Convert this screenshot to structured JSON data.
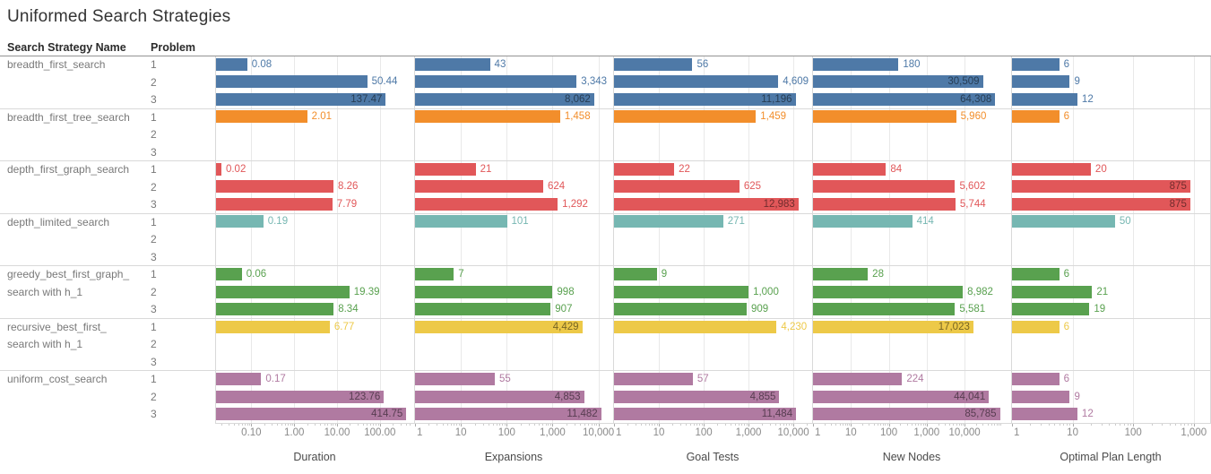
{
  "chart_data": {
    "type": "bar",
    "orientation": "horizontal",
    "scale": "log",
    "grid": true,
    "title": "Uniformed Search Strategies",
    "columns": {
      "strategy": "Search Strategy Name",
      "problem": "Problem"
    },
    "problems": [
      "1",
      "2",
      "3"
    ],
    "metrics": [
      {
        "label": "Duration",
        "min": 0.015,
        "max": 600,
        "ticks": [
          {
            "v": 0.1,
            "t": "0.10"
          },
          {
            "v": 1,
            "t": "1.00"
          },
          {
            "v": 10,
            "t": "10.00"
          },
          {
            "v": 100,
            "t": "100.00"
          }
        ]
      },
      {
        "label": "Expansions",
        "min": 1,
        "max": 20000,
        "ticks": [
          {
            "v": 1,
            "t": "1"
          },
          {
            "v": 10,
            "t": "10"
          },
          {
            "v": 100,
            "t": "100"
          },
          {
            "v": 1000,
            "t": "1,000"
          },
          {
            "v": 10000,
            "t": "10,000"
          }
        ]
      },
      {
        "label": "Goal Tests",
        "min": 1,
        "max": 25000,
        "ticks": [
          {
            "v": 1,
            "t": "1"
          },
          {
            "v": 10,
            "t": "10"
          },
          {
            "v": 100,
            "t": "100"
          },
          {
            "v": 1000,
            "t": "1,000"
          },
          {
            "v": 10000,
            "t": "10,000"
          }
        ]
      },
      {
        "label": "New Nodes",
        "min": 1,
        "max": 160000,
        "ticks": [
          {
            "v": 1,
            "t": "1"
          },
          {
            "v": 10,
            "t": "10"
          },
          {
            "v": 100,
            "t": "100"
          },
          {
            "v": 1000,
            "t": "1,000"
          },
          {
            "v": 10000,
            "t": "10,000"
          }
        ]
      },
      {
        "label": "Optimal Plan Length",
        "min": 1,
        "max": 1800,
        "ticks": [
          {
            "v": 1,
            "t": "1"
          },
          {
            "v": 10,
            "t": "10"
          },
          {
            "v": 100,
            "t": "100"
          },
          {
            "v": 1000,
            "t": "1,000"
          }
        ]
      }
    ],
    "strategies": [
      {
        "name_lines": [
          "breadth_first_search"
        ],
        "color": "#4e79a7",
        "rows": [
          {
            "problem": "1",
            "cells": [
              {
                "v": 0.08,
                "t": "0.08"
              },
              {
                "v": 43,
                "t": "43"
              },
              {
                "v": 56,
                "t": "56"
              },
              {
                "v": 180,
                "t": "180"
              },
              {
                "v": 6,
                "t": "6"
              }
            ]
          },
          {
            "problem": "2",
            "cells": [
              {
                "v": 50.44,
                "t": "50.44"
              },
              {
                "v": 3343,
                "t": "3,343"
              },
              {
                "v": 4609,
                "t": "4,609"
              },
              {
                "v": 30509,
                "t": "30,509",
                "in": true
              },
              {
                "v": 9,
                "t": "9"
              }
            ]
          },
          {
            "problem": "3",
            "cells": [
              {
                "v": 137.47,
                "t": "137.47",
                "in": true
              },
              {
                "v": 8062,
                "t": "8,062",
                "in": true
              },
              {
                "v": 11196,
                "t": "11,196",
                "in": true
              },
              {
                "v": 64308,
                "t": "64,308",
                "in": true
              },
              {
                "v": 12,
                "t": "12"
              }
            ]
          }
        ]
      },
      {
        "name_lines": [
          "breadth_first_tree_search"
        ],
        "color": "#f28e2b",
        "rows": [
          {
            "problem": "1",
            "cells": [
              {
                "v": 2.01,
                "t": "2.01"
              },
              {
                "v": 1458,
                "t": "1,458"
              },
              {
                "v": 1459,
                "t": "1,459"
              },
              {
                "v": 5960,
                "t": "5,960"
              },
              {
                "v": 6,
                "t": "6"
              }
            ]
          },
          {
            "problem": "2",
            "cells": null
          },
          {
            "problem": "3",
            "cells": null
          }
        ]
      },
      {
        "name_lines": [
          "depth_first_graph_search"
        ],
        "color": "#e15759",
        "rows": [
          {
            "problem": "1",
            "cells": [
              {
                "v": 0.02,
                "t": "0.02"
              },
              {
                "v": 21,
                "t": "21"
              },
              {
                "v": 22,
                "t": "22"
              },
              {
                "v": 84,
                "t": "84"
              },
              {
                "v": 20,
                "t": "20"
              }
            ]
          },
          {
            "problem": "2",
            "cells": [
              {
                "v": 8.26,
                "t": "8.26"
              },
              {
                "v": 624,
                "t": "624"
              },
              {
                "v": 625,
                "t": "625"
              },
              {
                "v": 5602,
                "t": "5,602"
              },
              {
                "v": 875,
                "t": "875",
                "in": true
              }
            ]
          },
          {
            "problem": "3",
            "cells": [
              {
                "v": 7.79,
                "t": "7.79"
              },
              {
                "v": 1292,
                "t": "1,292"
              },
              {
                "v": 12983,
                "t": "12,983",
                "in": true
              },
              {
                "v": 5744,
                "t": "5,744"
              },
              {
                "v": 875,
                "t": "875",
                "in": true
              }
            ]
          }
        ]
      },
      {
        "name_lines": [
          "depth_limited_search"
        ],
        "color": "#76b7b2",
        "rows": [
          {
            "problem": "1",
            "cells": [
              {
                "v": 0.19,
                "t": "0.19"
              },
              {
                "v": 101,
                "t": "101"
              },
              {
                "v": 271,
                "t": "271"
              },
              {
                "v": 414,
                "t": "414"
              },
              {
                "v": 50,
                "t": "50"
              }
            ]
          },
          {
            "problem": "2",
            "cells": null
          },
          {
            "problem": "3",
            "cells": null
          }
        ]
      },
      {
        "name_lines": [
          "greedy_best_first_graph_",
          "search with h_1"
        ],
        "color": "#59a14f",
        "rows": [
          {
            "problem": "1",
            "cells": [
              {
                "v": 0.06,
                "t": "0.06"
              },
              {
                "v": 7,
                "t": "7"
              },
              {
                "v": 9,
                "t": "9"
              },
              {
                "v": 28,
                "t": "28"
              },
              {
                "v": 6,
                "t": "6"
              }
            ]
          },
          {
            "problem": "2",
            "cells": [
              {
                "v": 19.39,
                "t": "19.39"
              },
              {
                "v": 998,
                "t": "998"
              },
              {
                "v": 1000,
                "t": "1,000"
              },
              {
                "v": 8982,
                "t": "8,982"
              },
              {
                "v": 21,
                "t": "21"
              }
            ]
          },
          {
            "problem": "3",
            "cells": [
              {
                "v": 8.34,
                "t": "8.34"
              },
              {
                "v": 907,
                "t": "907"
              },
              {
                "v": 909,
                "t": "909"
              },
              {
                "v": 5581,
                "t": "5,581"
              },
              {
                "v": 19,
                "t": "19"
              }
            ]
          }
        ]
      },
      {
        "name_lines": [
          "recursive_best_first_",
          "search with h_1"
        ],
        "color": "#edc948",
        "rows": [
          {
            "problem": "1",
            "cells": [
              {
                "v": 6.77,
                "t": "6.77"
              },
              {
                "v": 4429,
                "t": "4,429",
                "in": true
              },
              {
                "v": 4230,
                "t": "4,230"
              },
              {
                "v": 17023,
                "t": "17,023",
                "in": true
              },
              {
                "v": 6,
                "t": "6"
              }
            ]
          },
          {
            "problem": "2",
            "cells": null
          },
          {
            "problem": "3",
            "cells": null
          }
        ]
      },
      {
        "name_lines": [
          "uniform_cost_search"
        ],
        "color": "#b07aa1",
        "rows": [
          {
            "problem": "1",
            "cells": [
              {
                "v": 0.17,
                "t": "0.17"
              },
              {
                "v": 55,
                "t": "55"
              },
              {
                "v": 57,
                "t": "57"
              },
              {
                "v": 224,
                "t": "224"
              },
              {
                "v": 6,
                "t": "6"
              }
            ]
          },
          {
            "problem": "2",
            "cells": [
              {
                "v": 123.76,
                "t": "123.76",
                "in": true
              },
              {
                "v": 4853,
                "t": "4,853",
                "in": true
              },
              {
                "v": 4855,
                "t": "4,855",
                "in": true
              },
              {
                "v": 44041,
                "t": "44,041",
                "in": true
              },
              {
                "v": 9,
                "t": "9"
              }
            ]
          },
          {
            "problem": "3",
            "cells": [
              {
                "v": 414.75,
                "t": "414.75",
                "in": true
              },
              {
                "v": 11482,
                "t": "11,482",
                "in": true
              },
              {
                "v": 11484,
                "t": "11,484",
                "in": true
              },
              {
                "v": 85785,
                "t": "85,785",
                "in": true
              },
              {
                "v": 12,
                "t": "12"
              }
            ]
          }
        ]
      }
    ]
  }
}
